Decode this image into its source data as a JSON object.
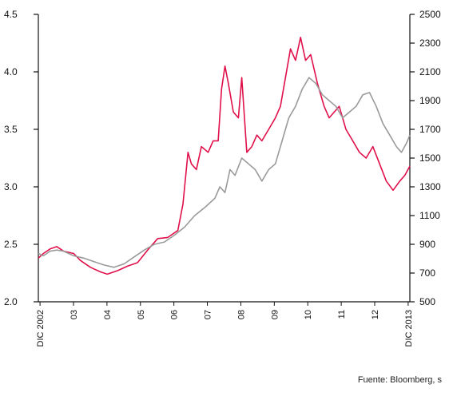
{
  "chart_data": {
    "type": "line",
    "source": "Fuente: Bloomberg, s",
    "colors": {
      "red": "#e0104a",
      "gray": "#9a9a9a"
    },
    "left_axis": {
      "ylim": [
        2.0,
        4.5
      ],
      "ticks": [
        "2.0",
        "2.5",
        "3.0",
        "3.5",
        "4.0",
        "4.5"
      ]
    },
    "right_axis": {
      "ylim": [
        500,
        2500
      ],
      "ticks": [
        "500",
        "700",
        "900",
        "1100",
        "1300",
        "1500",
        "1700",
        "1900",
        "2100",
        "2300",
        "2500"
      ]
    },
    "x_ticks": [
      "DIC 2002",
      "03",
      "04",
      "05",
      "06",
      "07",
      "08",
      "09",
      "10",
      "11",
      "12",
      "DIC 2013"
    ],
    "xlim": [
      2002.95,
      2014.0
    ],
    "series": [
      {
        "axis": "left",
        "color": "#e0104a",
        "points": [
          [
            2002.95,
            2.38
          ],
          [
            2003.1,
            2.42
          ],
          [
            2003.3,
            2.46
          ],
          [
            2003.5,
            2.48
          ],
          [
            2003.7,
            2.44
          ],
          [
            2004.0,
            2.42
          ],
          [
            2004.2,
            2.36
          ],
          [
            2004.5,
            2.3
          ],
          [
            2004.8,
            2.26
          ],
          [
            2005.0,
            2.24
          ],
          [
            2005.3,
            2.27
          ],
          [
            2005.6,
            2.31
          ],
          [
            2005.9,
            2.34
          ],
          [
            2006.2,
            2.45
          ],
          [
            2006.5,
            2.55
          ],
          [
            2006.8,
            2.56
          ],
          [
            2007.1,
            2.62
          ],
          [
            2007.25,
            2.85
          ],
          [
            2007.4,
            3.3
          ],
          [
            2007.5,
            3.2
          ],
          [
            2007.65,
            3.15
          ],
          [
            2007.8,
            3.35
          ],
          [
            2008.0,
            3.3
          ],
          [
            2008.15,
            3.4
          ],
          [
            2008.3,
            3.4
          ],
          [
            2008.4,
            3.85
          ],
          [
            2008.5,
            4.05
          ],
          [
            2008.6,
            3.9
          ],
          [
            2008.75,
            3.65
          ],
          [
            2008.9,
            3.6
          ],
          [
            2009.0,
            3.95
          ],
          [
            2009.15,
            3.3
          ],
          [
            2009.3,
            3.35
          ],
          [
            2009.45,
            3.45
          ],
          [
            2009.6,
            3.4
          ],
          [
            2009.8,
            3.5
          ],
          [
            2010.0,
            3.6
          ],
          [
            2010.15,
            3.7
          ],
          [
            2010.3,
            3.95
          ],
          [
            2010.45,
            4.2
          ],
          [
            2010.6,
            4.1
          ],
          [
            2010.75,
            4.3
          ],
          [
            2010.9,
            4.1
          ],
          [
            2011.05,
            4.15
          ],
          [
            2011.25,
            3.9
          ],
          [
            2011.45,
            3.7
          ],
          [
            2011.6,
            3.6
          ],
          [
            2011.75,
            3.65
          ],
          [
            2011.9,
            3.7
          ],
          [
            2012.1,
            3.5
          ],
          [
            2012.3,
            3.4
          ],
          [
            2012.5,
            3.3
          ],
          [
            2012.7,
            3.25
          ],
          [
            2012.9,
            3.35
          ],
          [
            2013.1,
            3.2
          ],
          [
            2013.3,
            3.05
          ],
          [
            2013.5,
            2.97
          ],
          [
            2013.7,
            3.05
          ],
          [
            2013.85,
            3.1
          ],
          [
            2014.0,
            3.18
          ]
        ]
      },
      {
        "axis": "left",
        "color": "#9a9a9a",
        "points": [
          [
            2002.95,
            2.42
          ],
          [
            2003.1,
            2.4
          ],
          [
            2003.3,
            2.44
          ],
          [
            2003.5,
            2.45
          ],
          [
            2003.7,
            2.44
          ],
          [
            2004.0,
            2.4
          ],
          [
            2004.3,
            2.38
          ],
          [
            2004.6,
            2.35
          ],
          [
            2004.9,
            2.32
          ],
          [
            2005.2,
            2.3
          ],
          [
            2005.5,
            2.33
          ],
          [
            2005.8,
            2.39
          ],
          [
            2006.1,
            2.45
          ],
          [
            2006.4,
            2.5
          ],
          [
            2006.7,
            2.52
          ],
          [
            2007.0,
            2.58
          ],
          [
            2007.3,
            2.65
          ],
          [
            2007.6,
            2.75
          ],
          [
            2007.9,
            2.82
          ],
          [
            2008.2,
            2.9
          ],
          [
            2008.35,
            3.0
          ],
          [
            2008.5,
            2.95
          ],
          [
            2008.65,
            3.15
          ],
          [
            2008.8,
            3.1
          ],
          [
            2009.0,
            3.25
          ],
          [
            2009.2,
            3.2
          ],
          [
            2009.4,
            3.15
          ],
          [
            2009.6,
            3.05
          ],
          [
            2009.8,
            3.15
          ],
          [
            2010.0,
            3.2
          ],
          [
            2010.2,
            3.4
          ],
          [
            2010.4,
            3.6
          ],
          [
            2010.6,
            3.7
          ],
          [
            2010.8,
            3.85
          ],
          [
            2011.0,
            3.95
          ],
          [
            2011.2,
            3.9
          ],
          [
            2011.4,
            3.8
          ],
          [
            2011.6,
            3.75
          ],
          [
            2011.8,
            3.7
          ],
          [
            2012.0,
            3.6
          ],
          [
            2012.2,
            3.65
          ],
          [
            2012.4,
            3.7
          ],
          [
            2012.6,
            3.8
          ],
          [
            2012.8,
            3.82
          ],
          [
            2013.0,
            3.7
          ],
          [
            2013.2,
            3.55
          ],
          [
            2013.4,
            3.45
          ],
          [
            2013.6,
            3.35
          ],
          [
            2013.75,
            3.3
          ],
          [
            2013.9,
            3.38
          ],
          [
            2014.0,
            3.45
          ]
        ]
      }
    ]
  }
}
